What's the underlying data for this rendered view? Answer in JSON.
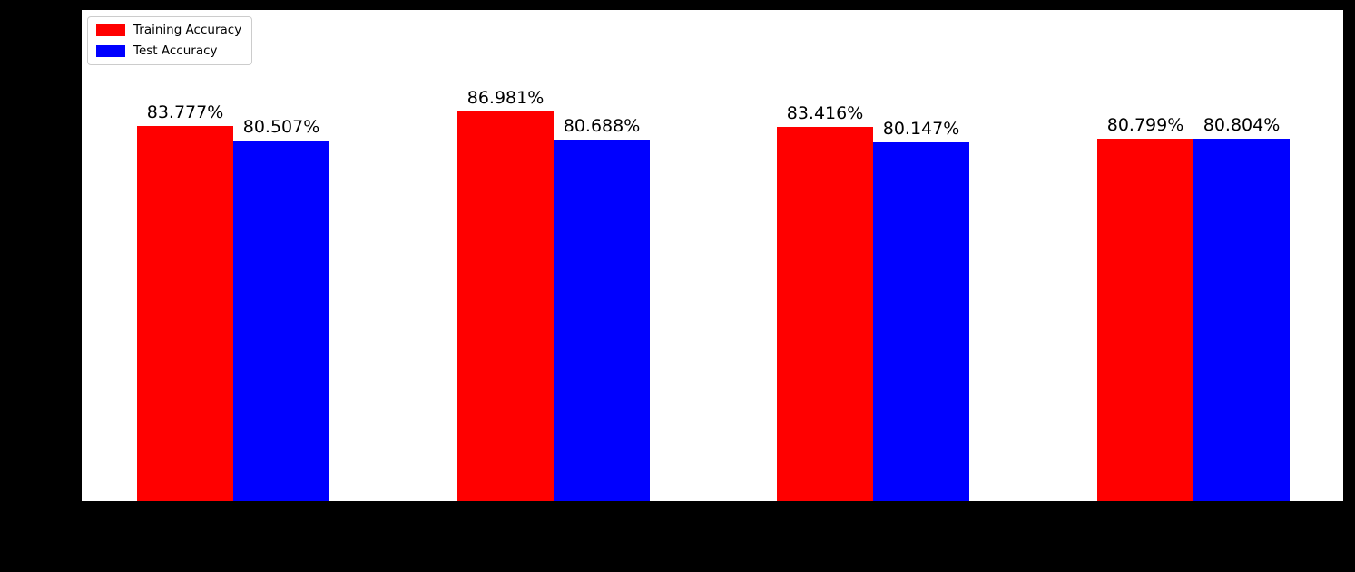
{
  "colors": {
    "figure_background": "#000000",
    "plot_background": "#ffffff",
    "training_bar": "#ff0000",
    "test_bar": "#0000ff",
    "label_text": "#000000",
    "legend_border": "#cccccc"
  },
  "legend": {
    "items": [
      {
        "label": "Training Accuracy",
        "color": "#ff0000"
      },
      {
        "label": "Test Accuracy",
        "color": "#0000ff"
      }
    ]
  },
  "chart_data": {
    "type": "bar",
    "title": "",
    "xlabel": "",
    "ylabel": "",
    "categories": [
      "",
      "",
      "",
      ""
    ],
    "series": [
      {
        "name": "Training Accuracy",
        "color": "#ff0000",
        "values": [
          83.777,
          86.981,
          83.416,
          80.799
        ],
        "labels": [
          "83.777%",
          "86.981%",
          "83.416%",
          "80.799%"
        ]
      },
      {
        "name": "Test Accuracy",
        "color": "#0000ff",
        "values": [
          80.507,
          80.688,
          80.147,
          80.804
        ],
        "labels": [
          "80.507%",
          "80.688%",
          "80.147%",
          "80.804%"
        ]
      }
    ],
    "ylim": [
      0,
      110
    ],
    "grid": false,
    "legend_position": "upper left",
    "bar_label_format": "percent, 3 decimals, above bar"
  }
}
